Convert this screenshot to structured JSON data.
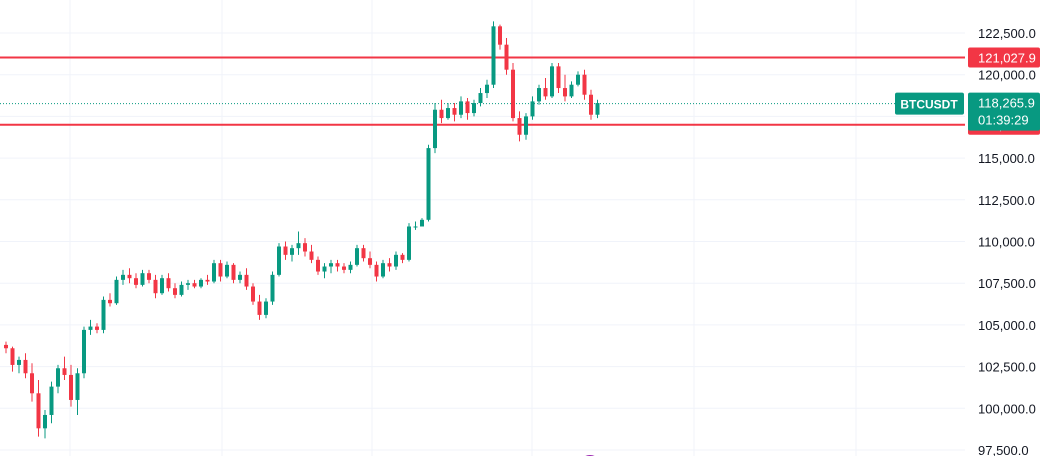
{
  "chart_data": {
    "type": "candlestick",
    "symbol": "BTCUSDT",
    "last_price": 118265.9,
    "last_price_label": "118,265.9",
    "countdown": "01:39:29",
    "y_axis": {
      "min": 97500,
      "max": 123000,
      "ticks": [
        97500,
        100000,
        102500,
        105000,
        107500,
        110000,
        112500,
        115000,
        117500,
        120000,
        122500
      ],
      "tick_labels": [
        "97,500.0",
        "100,000.0",
        "102,500.0",
        "105,000.0",
        "107,500.0",
        "110,000.0",
        "112,500.0",
        "115,000.0",
        "117,500.0",
        "120,000.0",
        "122,500.0"
      ]
    },
    "horizontal_lines": [
      {
        "price": 121027.9,
        "label": "121,027.9",
        "color": "#f23645"
      },
      {
        "price": 117000.6,
        "label": "117,000.6",
        "color": "#f23645"
      }
    ],
    "grid": true,
    "colors": {
      "up": "#089981",
      "down": "#f23645",
      "grid": "#f0f3fa",
      "last_price": "#089981"
    },
    "candles_ohlc": [
      [
        103800,
        104000,
        103300,
        103600
      ],
      [
        103600,
        103700,
        102200,
        102600
      ],
      [
        102600,
        103100,
        102100,
        102900
      ],
      [
        102900,
        103300,
        101800,
        102100
      ],
      [
        102100,
        102700,
        100400,
        100900
      ],
      [
        100900,
        101700,
        98300,
        98800
      ],
      [
        98800,
        99900,
        98200,
        99600
      ],
      [
        99600,
        101600,
        99100,
        101300
      ],
      [
        101300,
        102600,
        100900,
        102400
      ],
      [
        102400,
        103100,
        101700,
        102000
      ],
      [
        102000,
        102600,
        100100,
        100500
      ],
      [
        100500,
        102400,
        99600,
        102100
      ],
      [
        102100,
        104900,
        101800,
        104700
      ],
      [
        104700,
        105300,
        104400,
        104900
      ],
      [
        104900,
        105100,
        104500,
        104700
      ],
      [
        104700,
        106700,
        104500,
        106500
      ],
      [
        106500,
        106900,
        106100,
        106300
      ],
      [
        106300,
        107900,
        106200,
        107700
      ],
      [
        107700,
        108300,
        107400,
        108000
      ],
      [
        108000,
        108400,
        107500,
        107800
      ],
      [
        107800,
        108100,
        107200,
        107400
      ],
      [
        107400,
        108300,
        107300,
        108100
      ],
      [
        108100,
        108300,
        107500,
        107700
      ],
      [
        107700,
        108000,
        106600,
        106900
      ],
      [
        106900,
        108000,
        106800,
        107800
      ],
      [
        107800,
        108100,
        107000,
        107200
      ],
      [
        107200,
        107500,
        106600,
        106800
      ],
      [
        106800,
        107600,
        106700,
        107400
      ],
      [
        107400,
        107700,
        107100,
        107500
      ],
      [
        107500,
        107700,
        107200,
        107300
      ],
      [
        107300,
        107800,
        107200,
        107700
      ],
      [
        107700,
        108000,
        107400,
        107600
      ],
      [
        107600,
        108900,
        107500,
        108700
      ],
      [
        108700,
        108900,
        107600,
        107900
      ],
      [
        107900,
        108800,
        107800,
        108600
      ],
      [
        108600,
        108700,
        107500,
        107700
      ],
      [
        107700,
        108200,
        107500,
        108000
      ],
      [
        108000,
        108400,
        107100,
        107300
      ],
      [
        107300,
        107500,
        106200,
        106400
      ],
      [
        106400,
        106800,
        105300,
        105600
      ],
      [
        105600,
        106600,
        105400,
        106400
      ],
      [
        106400,
        108200,
        106200,
        108000
      ],
      [
        108000,
        109900,
        107900,
        109700
      ],
      [
        109700,
        110000,
        108900,
        109200
      ],
      [
        109200,
        109800,
        108800,
        109600
      ],
      [
        109600,
        110600,
        109200,
        109900
      ],
      [
        109900,
        110200,
        109100,
        109400
      ],
      [
        109400,
        109800,
        108700,
        108900
      ],
      [
        108900,
        109100,
        108000,
        108200
      ],
      [
        108200,
        108700,
        107800,
        108500
      ],
      [
        108500,
        108900,
        108100,
        108700
      ],
      [
        108700,
        108900,
        108200,
        108500
      ],
      [
        108500,
        108700,
        108100,
        108300
      ],
      [
        108300,
        108800,
        108100,
        108600
      ],
      [
        108600,
        109800,
        108500,
        109600
      ],
      [
        109600,
        109800,
        108800,
        109000
      ],
      [
        109000,
        109400,
        108400,
        108600
      ],
      [
        108600,
        108800,
        107600,
        107900
      ],
      [
        107900,
        108900,
        107800,
        108700
      ],
      [
        108700,
        109000,
        108200,
        108500
      ],
      [
        108500,
        109400,
        108300,
        109200
      ],
      [
        109200,
        109300,
        108700,
        108900
      ],
      [
        108900,
        111100,
        108800,
        110900
      ],
      [
        110900,
        111200,
        110700,
        110900
      ],
      [
        110900,
        111400,
        111000,
        111300
      ],
      [
        111300,
        115800,
        111200,
        115600
      ],
      [
        115600,
        118300,
        115300,
        117900
      ],
      [
        117900,
        118500,
        117100,
        117400
      ],
      [
        117400,
        118300,
        117300,
        118000
      ],
      [
        118000,
        118300,
        117200,
        117600
      ],
      [
        117600,
        118700,
        117400,
        118400
      ],
      [
        118400,
        118600,
        117300,
        117700
      ],
      [
        117700,
        118500,
        117500,
        118300
      ],
      [
        118300,
        119200,
        118100,
        118900
      ],
      [
        118900,
        119700,
        118600,
        119400
      ],
      [
        119400,
        123200,
        119200,
        122900
      ],
      [
        122900,
        123000,
        121500,
        121800
      ],
      [
        121800,
        122200,
        120000,
        120300
      ],
      [
        120300,
        120700,
        117200,
        117400
      ],
      [
        117400,
        117800,
        116000,
        116400
      ],
      [
        116400,
        117700,
        116100,
        117500
      ],
      [
        117500,
        118700,
        117300,
        118400
      ],
      [
        118400,
        119400,
        118200,
        119200
      ],
      [
        119200,
        119800,
        118500,
        118700
      ],
      [
        118700,
        120700,
        118600,
        120500
      ],
      [
        120500,
        120700,
        118900,
        119200
      ],
      [
        119200,
        120000,
        118400,
        118700
      ],
      [
        118700,
        119600,
        118600,
        119400
      ],
      [
        119400,
        120200,
        119300,
        120000
      ],
      [
        120000,
        120300,
        118500,
        118800
      ],
      [
        118800,
        119100,
        117300,
        117600
      ],
      [
        117600,
        118500,
        117400,
        118300
      ]
    ]
  }
}
